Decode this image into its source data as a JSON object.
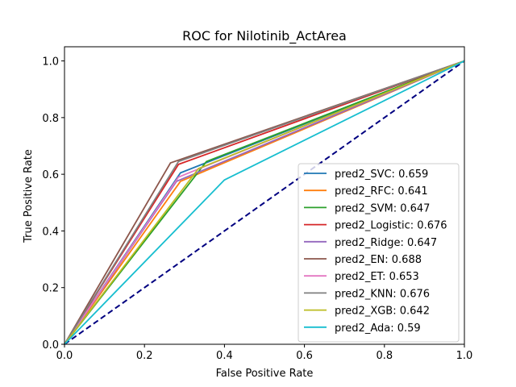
{
  "chart_data": {
    "type": "line",
    "title": "ROC for Nilotinib_ActArea",
    "xlabel": "False Positive Rate",
    "ylabel": "True Positive Rate",
    "xlim": [
      0,
      1
    ],
    "ylim": [
      0,
      1.05
    ],
    "xticks": [
      "0.0",
      "0.2",
      "0.4",
      "0.6",
      "0.8",
      "1.0"
    ],
    "yticks": [
      "0.0",
      "0.2",
      "0.4",
      "0.6",
      "0.8",
      "1.0"
    ],
    "legend_position": "lower-right",
    "grid": false,
    "chance_line": {
      "x": [
        0,
        1
      ],
      "y": [
        0,
        1
      ],
      "color": "#000080",
      "style": "dashed"
    },
    "series": [
      {
        "name": "pred2_SVC: 0.659",
        "color": "#1f77b4",
        "x": [
          0,
          0.29,
          1
        ],
        "y": [
          0,
          0.605,
          1
        ]
      },
      {
        "name": "pred2_RFC: 0.641",
        "color": "#ff7f0e",
        "x": [
          0,
          0.29,
          1
        ],
        "y": [
          0,
          0.575,
          1
        ]
      },
      {
        "name": "pred2_SVM: 0.647",
        "color": "#2ca02c",
        "x": [
          0,
          0.355,
          1
        ],
        "y": [
          0,
          0.645,
          1
        ]
      },
      {
        "name": "pred2_Logistic: 0.676",
        "color": "#d62728",
        "x": [
          0,
          0.285,
          1
        ],
        "y": [
          0,
          0.635,
          1
        ]
      },
      {
        "name": "pred2_Ridge: 0.647",
        "color": "#9467bd",
        "x": [
          0,
          0.28,
          1
        ],
        "y": [
          0,
          0.575,
          1
        ]
      },
      {
        "name": "pred2_EN: 0.688",
        "color": "#8c564b",
        "x": [
          0,
          0.265,
          1
        ],
        "y": [
          0,
          0.64,
          1
        ]
      },
      {
        "name": "pred2_ET: 0.653",
        "color": "#e377c2",
        "x": [
          0,
          0.285,
          1
        ],
        "y": [
          0,
          0.59,
          1
        ]
      },
      {
        "name": "pred2_KNN: 0.676",
        "color": "#7f7f7f",
        "x": [
          0,
          0.285,
          1
        ],
        "y": [
          0,
          0.645,
          1
        ]
      },
      {
        "name": "pred2_XGB: 0.642",
        "color": "#bcbd22",
        "x": [
          0,
          0.335,
          1
        ],
        "y": [
          0,
          0.62,
          1
        ]
      },
      {
        "name": "pred2_Ada: 0.59",
        "color": "#17becf",
        "x": [
          0,
          0.4,
          1
        ],
        "y": [
          0,
          0.58,
          1
        ]
      }
    ]
  }
}
